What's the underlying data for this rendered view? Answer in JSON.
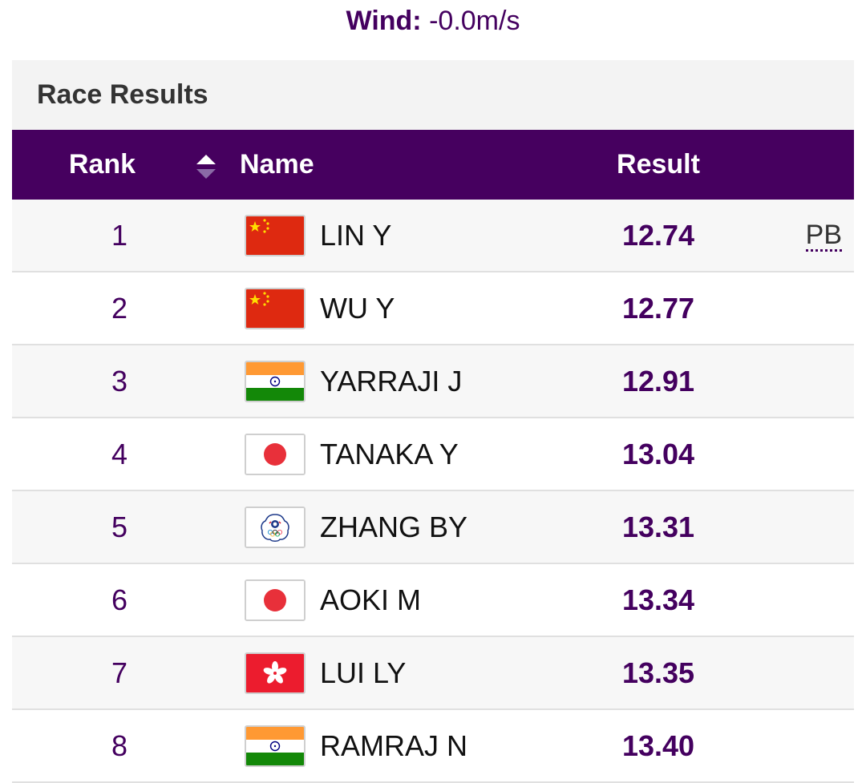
{
  "wind": {
    "label": "Wind:",
    "value": "-0.0m/s"
  },
  "panel": {
    "title": "Race Results"
  },
  "table": {
    "headers": {
      "rank": "Rank",
      "name": "Name",
      "result": "Result"
    },
    "rows": [
      {
        "rank": "1",
        "flag": "china-flag",
        "name": "LIN Y",
        "result": "12.74",
        "note": "PB"
      },
      {
        "rank": "2",
        "flag": "china-flag",
        "name": "WU Y",
        "result": "12.77",
        "note": ""
      },
      {
        "rank": "3",
        "flag": "india-flag",
        "name": "YARRAJI J",
        "result": "12.91",
        "note": ""
      },
      {
        "rank": "4",
        "flag": "japan-flag",
        "name": "TANAKA Y",
        "result": "13.04",
        "note": ""
      },
      {
        "rank": "5",
        "flag": "chinese-taipei-flag",
        "name": "ZHANG BY",
        "result": "13.31",
        "note": ""
      },
      {
        "rank": "6",
        "flag": "japan-flag",
        "name": "AOKI M",
        "result": "13.34",
        "note": ""
      },
      {
        "rank": "7",
        "flag": "hong-kong-flag",
        "name": "LUI LY",
        "result": "13.35",
        "note": ""
      },
      {
        "rank": "8",
        "flag": "india-flag",
        "name": "RAMRAJ N",
        "result": "13.40",
        "note": ""
      }
    ]
  },
  "colors": {
    "accent": "#46005f",
    "header_text": "#ffffff",
    "row_alt": "#f7f7f7"
  }
}
